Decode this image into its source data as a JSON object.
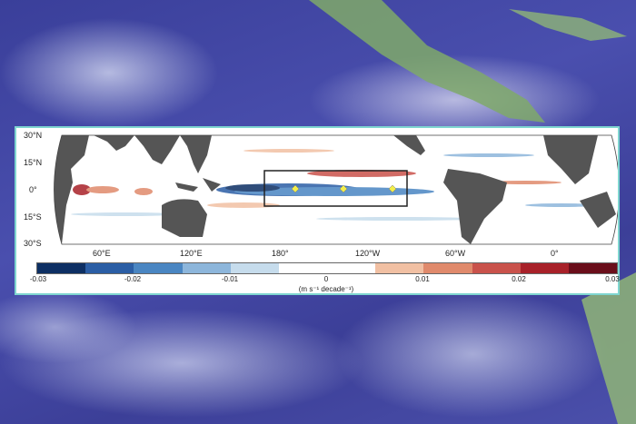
{
  "figure": {
    "lat_ticks": [
      "30°N",
      "15°N",
      "0°",
      "15°S",
      "30°S"
    ],
    "lon_ticks": [
      "60°E",
      "120°E",
      "180°",
      "120°W",
      "60°W",
      "0°"
    ],
    "colorbar": {
      "ticks": [
        "-0.03",
        "-0.02",
        "-0.01",
        "0",
        "0.01",
        "0.02",
        "0.03"
      ],
      "colors": [
        "#0d2f63",
        "#2b5ea5",
        "#4a86c2",
        "#8db6db",
        "#c6dcec",
        "#ffffff",
        "#ffffff",
        "#f1c0a3",
        "#e08a6c",
        "#c9524b",
        "#a82129",
        "#6a0e1a"
      ],
      "unit": "(m s⁻¹ decade⁻¹)"
    },
    "land_color": "#555555",
    "box_color": "#222222",
    "marker_color": "#f2ee4a"
  }
}
